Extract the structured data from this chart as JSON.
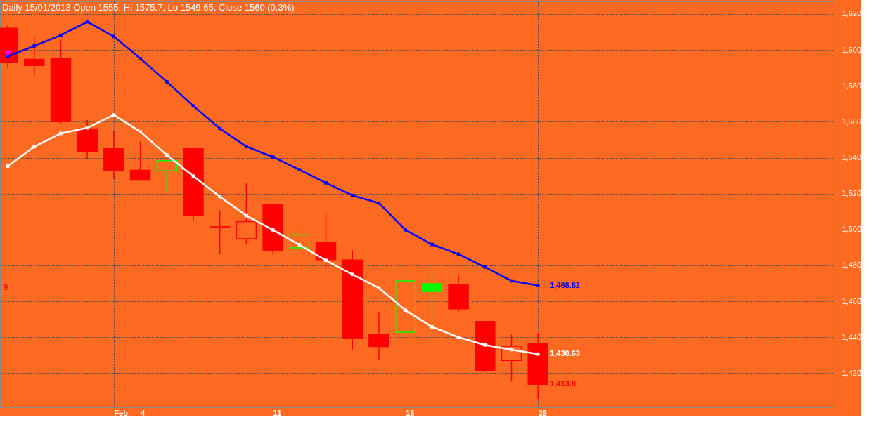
{
  "chart_data": {
    "type": "candlestick",
    "title": "Daily 15/01/2013 Open 1555, Hi 1575.7, Lo 1549.65, Close 1560 (0.3%)",
    "categories": [
      null,
      null,
      null,
      null,
      "Feb",
      "4",
      null,
      null,
      null,
      null,
      "11",
      null,
      null,
      null,
      null,
      "18",
      null,
      null,
      null,
      null,
      "25"
    ],
    "ohlc": [
      [
        1612,
        1614,
        1590,
        1593
      ],
      [
        1594.7,
        1607.5,
        1585,
        1591.3
      ],
      [
        1595,
        1605.6,
        1559,
        1560
      ],
      [
        1556,
        1561,
        1539,
        1543.5
      ],
      [
        1545,
        1555,
        1528,
        1533
      ],
      [
        1533,
        1549,
        1527.5,
        1527.5
      ],
      [
        1532.7,
        1538.3,
        1521,
        1538.3
      ],
      [
        1545,
        1545,
        1504.6,
        1508
      ],
      [
        1501.5,
        1510.7,
        1486.3,
        1501
      ],
      [
        1494.8,
        1526,
        1491.7,
        1504.4
      ],
      [
        1514,
        1514,
        1486,
        1488.3
      ],
      [
        1489.8,
        1502.5,
        1478,
        1497
      ],
      [
        1492.8,
        1509.5,
        1478.3,
        1483.2
      ],
      [
        1483,
        1488.5,
        1433.3,
        1439.6
      ],
      [
        1441.4,
        1454,
        1427.5,
        1434.8
      ],
      [
        1442.8,
        1473,
        1441.2,
        1471.4
      ],
      [
        1469.8,
        1476.3,
        1448,
        1465.5
      ],
      [
        1469.4,
        1474.5,
        1454.2,
        1455.8
      ],
      [
        1448.8,
        1448.8,
        1421,
        1421.6
      ],
      [
        1427.1,
        1441.4,
        1415.8,
        1435
      ],
      [
        1436.7,
        1442.3,
        1405.7,
        1413.8
      ]
    ],
    "colors": [
      "#ff0000",
      "#ff0000",
      "#ff0000",
      "#ff0000",
      "#ff0000",
      "#ff0000",
      "#00ff00",
      "#ff0000",
      "#ff0000",
      "#ff0000",
      "#ff0000",
      "#00ff00",
      "#ff0000",
      "#ff0000",
      "#ff0000",
      "#00ff00",
      "#00ff00",
      "#ff0000",
      "#ff0000",
      "#ff0000",
      "#ff0000"
    ],
    "value_labels": [
      null,
      null,
      null,
      null,
      null,
      null,
      null,
      null,
      null,
      null,
      null,
      null,
      null,
      null,
      null,
      null,
      null,
      null,
      null,
      null,
      "1,413.8"
    ],
    "series": [
      {
        "type": "line",
        "color": "#0000ff",
        "marker": "square",
        "values": [
          1596.3,
          1602.2,
          1608.2,
          1615.6,
          1607.5,
          1595.2,
          1582.3,
          1568.8,
          1556.2,
          1546.2,
          1540.4,
          1533.3,
          1526,
          1519,
          1514.7,
          1499.8,
          1491.7,
          1486.3,
          1479.1,
          1471.4,
          1468.82
        ],
        "value_labels": [
          null,
          null,
          null,
          null,
          null,
          null,
          null,
          null,
          null,
          null,
          null,
          null,
          null,
          null,
          null,
          null,
          null,
          null,
          null,
          null,
          "1,468.82"
        ]
      },
      {
        "type": "line",
        "color": "#ffffff",
        "marker": "square",
        "values": [
          1535.3,
          1546.1,
          1553.5,
          1556.6,
          1563.8,
          1554.4,
          1541.5,
          1529.7,
          1518.3,
          1507.7,
          1499.8,
          1491.5,
          1482.8,
          1475,
          1467.5,
          1455.1,
          1445.8,
          1440,
          1435.7,
          1433.1,
          1430.63
        ],
        "value_labels": [
          null,
          null,
          null,
          null,
          null,
          null,
          null,
          null,
          null,
          null,
          null,
          null,
          null,
          null,
          null,
          null,
          null,
          null,
          null,
          null,
          "1,430.63"
        ]
      },
      {
        "type": "scatter",
        "color": "#ff00ff",
        "marker": "triangle",
        "values": [
          1598,
          null,
          null,
          null,
          null,
          null,
          null,
          null,
          null,
          null,
          null,
          null,
          null,
          null,
          null,
          null,
          null,
          null,
          null,
          null,
          null
        ]
      }
    ],
    "annotations": [
      "9"
    ],
    "ylim": [
      1401,
      1627
    ],
    "yticks": [
      {
        "value": 1420,
        "label": "1,420"
      },
      {
        "value": 1440,
        "label": "1,440"
      },
      {
        "value": 1460,
        "label": "1,460"
      },
      {
        "value": 1480,
        "label": "1,480"
      },
      {
        "value": 1500,
        "label": "1,500"
      },
      {
        "value": 1520,
        "label": "1,520"
      },
      {
        "value": 1540,
        "label": "1,540"
      },
      {
        "value": 1560,
        "label": "1,560"
      },
      {
        "value": 1580,
        "label": "1,580"
      },
      {
        "value": 1600,
        "label": "1,600"
      },
      {
        "value": 1620,
        "label": "1,620"
      }
    ],
    "grid": true
  }
}
